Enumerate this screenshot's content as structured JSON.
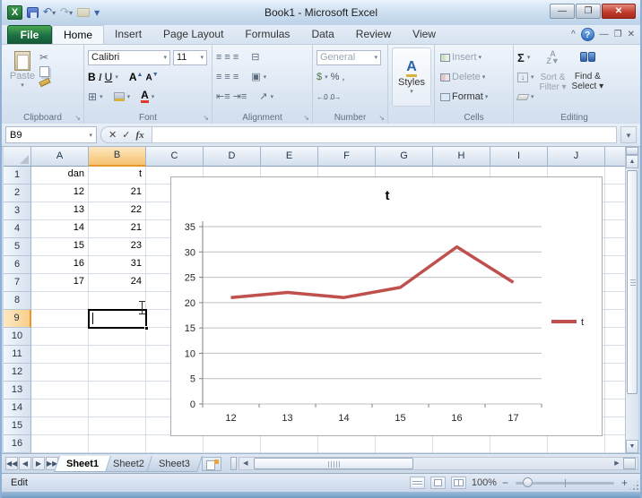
{
  "window": {
    "title": "Book1  -  Microsoft Excel"
  },
  "tabs": {
    "items": [
      "File",
      "Home",
      "Insert",
      "Page Layout",
      "Formulas",
      "Data",
      "Review",
      "View"
    ],
    "active": "Home"
  },
  "ribbon": {
    "clipboard": {
      "label": "Clipboard",
      "paste": "Paste"
    },
    "font": {
      "label": "Font",
      "name": "Calibri",
      "size": "11",
      "bold": "B",
      "italic": "I",
      "underline": "U"
    },
    "alignment": {
      "label": "Alignment"
    },
    "number": {
      "label": "Number",
      "format": "General",
      "percent": "%",
      "comma": ",",
      "currency": "$",
      "inc_dec": "←.0",
      "dec_dec": ".0→"
    },
    "styles": {
      "button": "Styles"
    },
    "cells": {
      "label": "Cells",
      "insert": "Insert",
      "delete": "Delete",
      "format": "Format"
    },
    "editing": {
      "label": "Editing",
      "autosum": "Σ",
      "sort": "Sort & Filter",
      "find": "Find & Select"
    }
  },
  "formula_bar": {
    "name_box": "B9",
    "cancel": "✕",
    "enter": "✓",
    "fx": "fx",
    "value": ""
  },
  "grid": {
    "columns": [
      "A",
      "B",
      "C",
      "D",
      "E",
      "F",
      "G",
      "H",
      "I",
      "J"
    ],
    "row_count": 16,
    "selected_cell": "B9",
    "cells": {
      "A1": "dan",
      "B1": "t",
      "A2": "12",
      "B2": "21",
      "A3": "13",
      "B3": "22",
      "A4": "14",
      "B4": "21",
      "A5": "15",
      "B5": "23",
      "A6": "16",
      "B6": "31",
      "A7": "17",
      "B7": "24"
    }
  },
  "chart_data": {
    "type": "line",
    "title": "t",
    "categories": [
      "12",
      "13",
      "14",
      "15",
      "16",
      "17"
    ],
    "series": [
      {
        "name": "t",
        "values": [
          21,
          22,
          21,
          23,
          31,
          24
        ],
        "color": "#C0504D"
      }
    ],
    "xlabel": "",
    "ylabel": "",
    "ylim": [
      0,
      35
    ],
    "ytick_step": 5,
    "grid": true,
    "legend_position": "right"
  },
  "sheets": {
    "tabs": [
      "Sheet1",
      "Sheet2",
      "Sheet3"
    ],
    "active": "Sheet1"
  },
  "status": {
    "mode": "Edit",
    "zoom": "100%"
  },
  "colors": {
    "series_line": "#C0504D",
    "file_tab_green": "#1E7145",
    "selection_header": "#F8CF8B"
  },
  "icons": {
    "excel_logo": "X",
    "save": "floppy",
    "undo": "↶",
    "redo": "↷",
    "open": "folder",
    "qat_menu": "▾",
    "minimize": "—",
    "maximize": "❐",
    "close": "✕",
    "help": "?",
    "collapse_ribbon": "^",
    "name_box_arrow": "▾",
    "expand_formula_bar": "▾",
    "nav_first": "◀◀",
    "nav_prev": "◀",
    "nav_next": "▶",
    "nav_last": "▶▶",
    "scroll_up": "▲",
    "scroll_down": "▼",
    "scroll_left": "◀",
    "scroll_right": "▶"
  }
}
